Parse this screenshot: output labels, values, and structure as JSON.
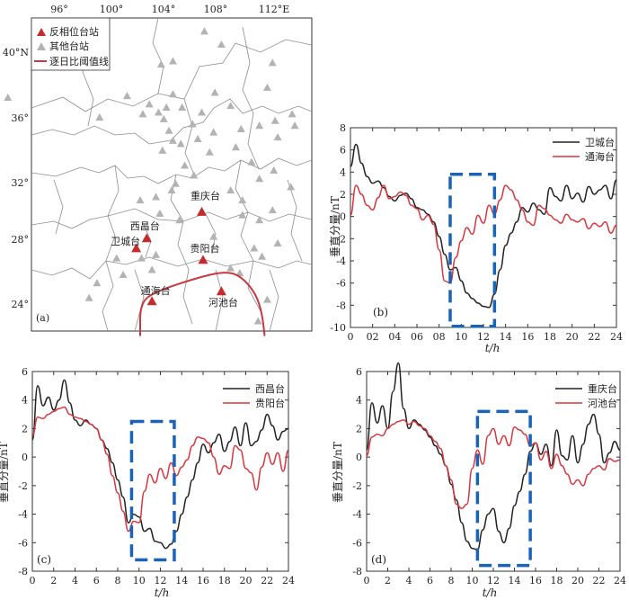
{
  "map": {
    "label": "(a)",
    "lon_ticks": [
      "96°",
      "100°",
      "104°",
      "108°",
      "112°E"
    ],
    "lat_ticks": [
      "40°N",
      "36°",
      "32°",
      "28°",
      "24°"
    ],
    "legend": {
      "anti_phase": "反相位台站",
      "other": "其他台站",
      "threshold": "逐日比阈值线"
    },
    "stations": [
      {
        "name": "重庆台",
        "lon": 106.5,
        "lat": 29.5
      },
      {
        "name": "西昌台",
        "lon": 102.3,
        "lat": 27.9
      },
      {
        "name": "卫城台",
        "lon": 101.5,
        "lat": 27.3
      },
      {
        "name": "贵阳台",
        "lon": 106.6,
        "lat": 26.6
      },
      {
        "name": "通海台",
        "lon": 102.7,
        "lat": 24.1
      },
      {
        "name": "河池台",
        "lon": 108.0,
        "lat": 24.7
      }
    ],
    "other_stations": [
      [
        91.7,
        36.4
      ],
      [
        103.4,
        38.4
      ],
      [
        104.3,
        38.6
      ],
      [
        106.7,
        40.4
      ],
      [
        108.0,
        39.6
      ],
      [
        111.9,
        38.5
      ],
      [
        107.5,
        36.7
      ],
      [
        98.7,
        35.2
      ],
      [
        100.8,
        36.5
      ],
      [
        102.5,
        36.0
      ],
      [
        103.8,
        35.8
      ],
      [
        103.6,
        35.1
      ],
      [
        103.2,
        35.5
      ],
      [
        102.0,
        35.4
      ],
      [
        104.3,
        36.6
      ],
      [
        105.0,
        35.8
      ],
      [
        105.8,
        34.8
      ],
      [
        106.5,
        35.5
      ],
      [
        104.0,
        34.4
      ],
      [
        104.3,
        33.8
      ],
      [
        103.5,
        33.2
      ],
      [
        104.9,
        33.6
      ],
      [
        106.2,
        33.9
      ],
      [
        107.4,
        34.3
      ],
      [
        109.5,
        34.5
      ],
      [
        108.7,
        35.9
      ],
      [
        110.9,
        34.7
      ],
      [
        112.1,
        35.0
      ],
      [
        112.3,
        34.0
      ],
      [
        113.6,
        34.7
      ],
      [
        113.4,
        35.4
      ],
      [
        111.5,
        37.0
      ],
      [
        109.1,
        33.4
      ],
      [
        107.1,
        33.1
      ],
      [
        110.3,
        32.5
      ],
      [
        112.0,
        32.0
      ],
      [
        105.2,
        32.3
      ],
      [
        105.9,
        31.7
      ],
      [
        104.5,
        31.2
      ],
      [
        103.0,
        30.4
      ],
      [
        101.8,
        30.2
      ],
      [
        104.2,
        30.8
      ],
      [
        108.7,
        30.8
      ],
      [
        110.9,
        31.5
      ],
      [
        109.6,
        29.3
      ],
      [
        110.9,
        29.0
      ],
      [
        113.3,
        31.0
      ],
      [
        112.3,
        27.6
      ],
      [
        111.1,
        26.8
      ],
      [
        109.6,
        30.2
      ],
      [
        104.8,
        29.0
      ],
      [
        103.3,
        29.4
      ],
      [
        102.7,
        26.0
      ],
      [
        101.9,
        26.7
      ],
      [
        100.0,
        26.7
      ],
      [
        98.5,
        25.2
      ],
      [
        97.9,
        24.3
      ],
      [
        100.5,
        25.7
      ],
      [
        103.0,
        26.9
      ],
      [
        108.7,
        26.1
      ],
      [
        110.5,
        27.3
      ],
      [
        109.4,
        25.8
      ],
      [
        111.9,
        29.6
      ],
      [
        111.5,
        24.2
      ],
      [
        110.8,
        22.9
      ],
      [
        107.4,
        28.0
      ]
    ],
    "boundary_points": [
      [
        101.8,
        22.0
      ],
      [
        101.8,
        24.0
      ],
      [
        103.0,
        24.7
      ],
      [
        106.5,
        25.6
      ],
      [
        108.4,
        25.9
      ],
      [
        109.5,
        25.6
      ],
      [
        110.6,
        24.6
      ],
      [
        111.1,
        23.4
      ],
      [
        111.3,
        22.0
      ]
    ]
  },
  "panels": [
    {
      "label": "(b)",
      "ylabel": "垂直分量/nT",
      "xlabel": "t/h"
    },
    {
      "label": "(c)",
      "ylabel": "垂直分量/nT",
      "xlabel": "t/h"
    },
    {
      "label": "(d)",
      "ylabel": "垂直分量/nT",
      "xlabel": "t/h"
    }
  ],
  "colors": {
    "black": "#222222",
    "red": "#d9363e",
    "box": "#1a64b8",
    "triangle_red": "#c62a2a",
    "triangle_gray": "#b3b3b3",
    "boundary": "#c9383e"
  },
  "chart_data": [
    {
      "type": "line",
      "panel": "(b)",
      "xlabel": "t/h",
      "ylabel": "垂直分量/nT",
      "xlim": [
        0,
        24
      ],
      "ylim": [
        -10,
        8
      ],
      "xticks": [
        "0",
        "02",
        "04",
        "06",
        "08",
        "10",
        "12",
        "14",
        "16",
        "18",
        "20",
        "22",
        "24"
      ],
      "yticks": [
        "8",
        "6",
        "4",
        "2",
        "0",
        "-2",
        "-4",
        "-6",
        "-8",
        "-10"
      ],
      "dashed_box": {
        "x": [
          9.0,
          13.0
        ],
        "y": [
          -9.9,
          3.8
        ]
      },
      "series": [
        {
          "name": "卫城台",
          "color": "#222222",
          "x": [
            0,
            0.5,
            1,
            1.5,
            2,
            2.5,
            3,
            3.5,
            4,
            4.5,
            5,
            5.5,
            6,
            6.5,
            7,
            7.5,
            8,
            8.5,
            9,
            9.5,
            10,
            10.5,
            11,
            11.5,
            12,
            12.5,
            13,
            13.5,
            14,
            14.5,
            15,
            15.5,
            16,
            16.5,
            17,
            17.5,
            18,
            18.5,
            19,
            19.5,
            20,
            20.5,
            21,
            21.5,
            22,
            22.5,
            23,
            23.5,
            24
          ],
          "y": [
            4.5,
            6.5,
            4.8,
            3.6,
            3.0,
            3.2,
            2.6,
            1.8,
            1.4,
            1.9,
            2.1,
            1.6,
            0.8,
            0.6,
            0.2,
            -0.5,
            -1.8,
            -3.4,
            -4.8,
            -4.6,
            -5.8,
            -6.9,
            -7.4,
            -7.8,
            -8.1,
            -8.2,
            -7.0,
            -4.8,
            -2.6,
            -1.5,
            -0.5,
            0.8,
            0.4,
            1.2,
            0.6,
            0.2,
            2.6,
            1.8,
            1.4,
            2.8,
            1.6,
            2.1,
            1.3,
            2.7,
            2.0,
            2.4,
            2.8,
            1.6,
            3.3
          ]
        },
        {
          "name": "通海台",
          "color": "#d9363e",
          "x": [
            0,
            0.5,
            1,
            1.5,
            2,
            2.5,
            3,
            3.5,
            4,
            4.5,
            5,
            5.5,
            6,
            6.5,
            7,
            7.5,
            8,
            8.5,
            9,
            9.5,
            10,
            10.5,
            11,
            11.5,
            12,
            12.5,
            13,
            13.5,
            14,
            14.5,
            15,
            15.5,
            16,
            16.5,
            17,
            17.5,
            18,
            18.5,
            19,
            19.5,
            20,
            20.5,
            21,
            21.5,
            22,
            22.5,
            23,
            23.5,
            24
          ],
          "y": [
            0.1,
            2.8,
            2.0,
            1.0,
            0.6,
            1.7,
            2.8,
            1.6,
            1.8,
            2.2,
            1.9,
            1.0,
            0.7,
            -0.3,
            0.1,
            -0.7,
            -3.0,
            -5.8,
            -6.0,
            -3.7,
            -2.2,
            -1.0,
            -1.6,
            0.1,
            -0.6,
            1.0,
            0.2,
            1.5,
            2.8,
            2.4,
            1.5,
            0.6,
            -0.5,
            -0.8,
            1.0,
            0.7,
            0.1,
            -0.3,
            -0.6,
            0.2,
            -0.3,
            -0.5,
            -0.2,
            -1.1,
            -0.6,
            -0.9,
            -0.5,
            -1.5,
            -0.8
          ]
        }
      ]
    },
    {
      "type": "line",
      "panel": "(c)",
      "xlabel": "t/h",
      "ylabel": "垂直分量/nT",
      "xlim": [
        0,
        24
      ],
      "ylim": [
        -8,
        6
      ],
      "xticks": [
        "0",
        "2",
        "4",
        "6",
        "8",
        "10",
        "12",
        "14",
        "16",
        "18",
        "20",
        "22",
        "24"
      ],
      "yticks": [
        "6",
        "4",
        "2",
        "0",
        "-2",
        "-4",
        "-6",
        "-8"
      ],
      "dashed_box": {
        "x": [
          9.3,
          13.3
        ],
        "y": [
          -7.2,
          2.5
        ]
      },
      "series": [
        {
          "name": "西昌台",
          "color": "#222222",
          "x": [
            0,
            0.5,
            1,
            1.5,
            2,
            2.5,
            3,
            3.5,
            4,
            4.5,
            5,
            5.5,
            6,
            6.5,
            7,
            7.5,
            8,
            8.5,
            9,
            9.5,
            10,
            10.5,
            11,
            11.5,
            12,
            12.5,
            13,
            13.5,
            14,
            14.5,
            15,
            15.5,
            16,
            16.5,
            17,
            17.5,
            18,
            18.5,
            19,
            19.5,
            20,
            20.5,
            21,
            21.5,
            22,
            22.5,
            23,
            23.5,
            24
          ],
          "y": [
            1.2,
            5.0,
            3.6,
            4.2,
            3.3,
            4.0,
            5.4,
            3.8,
            2.6,
            2.2,
            2.6,
            2.3,
            2.0,
            1.2,
            0.6,
            -0.4,
            -1.6,
            -2.8,
            -4.6,
            -4.0,
            -4.2,
            -5.2,
            -5.0,
            -5.9,
            -6.0,
            -6.4,
            -6.1,
            -5.2,
            -4.0,
            -2.8,
            -1.6,
            -0.4,
            0.9,
            0.3,
            1.0,
            1.6,
            0.4,
            1.1,
            2.1,
            0.8,
            2.4,
            0.8,
            1.1,
            1.9,
            3.0,
            2.2,
            1.2,
            1.8,
            2.0
          ]
        },
        {
          "name": "贵阳台",
          "color": "#d9363e",
          "x": [
            0,
            0.5,
            1,
            1.5,
            2,
            2.5,
            3,
            3.5,
            4,
            4.5,
            5,
            5.5,
            6,
            6.5,
            7,
            7.5,
            8,
            8.5,
            9,
            9.5,
            10,
            10.5,
            11,
            11.5,
            12,
            12.5,
            13,
            13.5,
            14,
            14.5,
            15,
            15.5,
            16,
            16.5,
            17,
            17.5,
            18,
            18.5,
            19,
            19.5,
            20,
            20.5,
            21,
            21.5,
            22,
            22.5,
            23,
            23.5,
            24
          ],
          "y": [
            1.5,
            2.8,
            2.7,
            3.0,
            3.2,
            3.4,
            3.5,
            3.0,
            2.8,
            2.7,
            2.5,
            2.3,
            2.0,
            1.2,
            0.2,
            -1.3,
            -2.5,
            -3.8,
            -5.2,
            -4.5,
            -4.6,
            -2.4,
            -1.2,
            -1.8,
            -0.8,
            -1.5,
            -0.4,
            -1.3,
            -0.7,
            -0.2,
            0.8,
            1.4,
            1.3,
            1.0,
            0.0,
            -1.2,
            -0.6,
            -0.8,
            0.8,
            0.5,
            -0.8,
            -1.1,
            -2.3,
            -0.7,
            0.3,
            -0.5,
            0.3,
            -1.0,
            0.5
          ]
        }
      ]
    },
    {
      "type": "line",
      "panel": "(d)",
      "xlabel": "t/h",
      "ylabel": "垂直分量/nT",
      "xlim": [
        0,
        24
      ],
      "ylim": [
        -8,
        6
      ],
      "xticks": [
        "0",
        "2",
        "4",
        "6",
        "8",
        "10",
        "12",
        "14",
        "16",
        "18",
        "20",
        "22",
        "24"
      ],
      "yticks": [
        "6",
        "4",
        "2",
        "0",
        "-2",
        "-4",
        "-6",
        "-8"
      ],
      "dashed_box": {
        "x": [
          10.5,
          15.5
        ],
        "y": [
          -7.6,
          3.2
        ]
      },
      "series": [
        {
          "name": "重庆台",
          "color": "#222222",
          "x": [
            0,
            0.5,
            1,
            1.5,
            2,
            2.5,
            3,
            3.5,
            4,
            4.5,
            5,
            5.5,
            6,
            6.5,
            7,
            7.5,
            8,
            8.5,
            9,
            9.5,
            10,
            10.5,
            11,
            11.5,
            12,
            12.5,
            13,
            13.5,
            14,
            14.5,
            15,
            15.5,
            16,
            16.5,
            17,
            17.5,
            18,
            18.5,
            19,
            19.5,
            20,
            20.5,
            21,
            21.5,
            22,
            22.5,
            23,
            23.5,
            24
          ],
          "y": [
            0.5,
            3.8,
            2.4,
            3.6,
            2.0,
            4.6,
            6.6,
            3.4,
            2.0,
            2.6,
            2.3,
            1.9,
            1.4,
            0.8,
            0.2,
            -0.6,
            -1.9,
            -3.0,
            -4.6,
            -5.9,
            -6.4,
            -6.5,
            -5.1,
            -4.0,
            -3.6,
            -5.2,
            -6.0,
            -5.0,
            -3.4,
            -2.4,
            -1.2,
            0.4,
            1.0,
            0.2,
            0.9,
            -0.6,
            1.9,
            0.1,
            -0.2,
            1.5,
            -0.4,
            0.9,
            2.3,
            3.0,
            1.6,
            -0.4,
            0.3,
            1.1,
            0.5
          ]
        },
        {
          "name": "河池台",
          "color": "#d9363e",
          "x": [
            0,
            0.5,
            1,
            1.5,
            2,
            2.5,
            3,
            3.5,
            4,
            4.5,
            5,
            5.5,
            6,
            6.5,
            7,
            7.5,
            8,
            8.5,
            9,
            9.5,
            10,
            10.5,
            11,
            11.5,
            12,
            12.5,
            13,
            13.5,
            14,
            14.5,
            15,
            15.5,
            16,
            16.5,
            17,
            17.5,
            18,
            18.5,
            19,
            19.5,
            20,
            20.5,
            21,
            21.5,
            22,
            22.5,
            23,
            23.5,
            24
          ],
          "y": [
            0.1,
            1.4,
            1.6,
            1.5,
            2.0,
            2.3,
            2.5,
            2.6,
            2.3,
            2.5,
            2.2,
            2.0,
            1.5,
            1.1,
            0.6,
            -0.6,
            -1.6,
            -3.3,
            -3.6,
            -3.3,
            -0.8,
            0.5,
            -0.5,
            1.5,
            2.0,
            0.9,
            1.5,
            0.8,
            2.1,
            1.9,
            1.6,
            0.8,
            1.0,
            -0.2,
            0.4,
            -0.8,
            0.2,
            -0.6,
            -1.2,
            -1.9,
            -1.6,
            -2.0,
            -1.2,
            -0.8,
            -0.6,
            -0.9,
            -0.1,
            -0.3,
            -0.2
          ]
        }
      ]
    }
  ]
}
